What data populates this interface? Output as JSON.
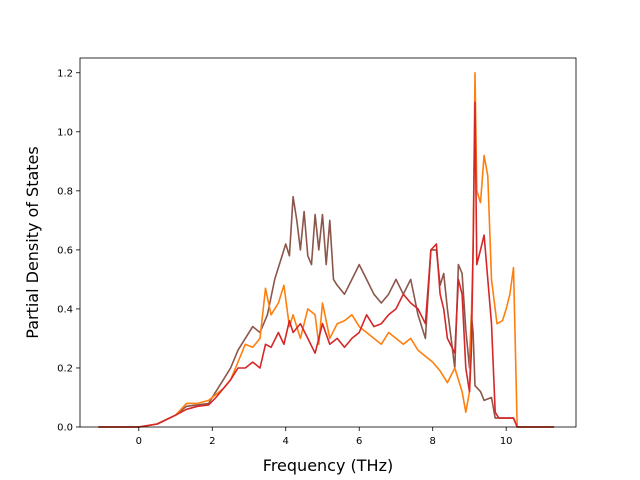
{
  "chart_data": {
    "type": "line",
    "title": "",
    "xlabel": "Frequency (THz)",
    "ylabel": "Partial Density of States",
    "xlim": [
      -1.6,
      11.9
    ],
    "ylim": [
      0.0,
      1.25
    ],
    "xticks": [
      0,
      2,
      4,
      6,
      8,
      10
    ],
    "yticks": [
      0.0,
      0.2,
      0.4,
      0.6,
      0.8,
      1.0,
      1.2
    ],
    "xtick_labels": [
      "0",
      "2",
      "4",
      "6",
      "8",
      "10"
    ],
    "ytick_labels": [
      "0.0",
      "0.2",
      "0.4",
      "0.6",
      "0.8",
      "1.0",
      "1.2"
    ],
    "grid": false,
    "legend": "none",
    "series": [
      {
        "color": "#8c564b",
        "points": [
          [
            -1.1,
            0
          ],
          [
            -0.2,
            0
          ],
          [
            0.0,
            0.0
          ],
          [
            0.5,
            0.01
          ],
          [
            1.0,
            0.04
          ],
          [
            1.3,
            0.07
          ],
          [
            1.6,
            0.075
          ],
          [
            1.9,
            0.08
          ],
          [
            2.1,
            0.12
          ],
          [
            2.3,
            0.16
          ],
          [
            2.5,
            0.2
          ],
          [
            2.7,
            0.26
          ],
          [
            2.9,
            0.3
          ],
          [
            3.1,
            0.34
          ],
          [
            3.3,
            0.32
          ],
          [
            3.5,
            0.38
          ],
          [
            3.7,
            0.5
          ],
          [
            3.9,
            0.58
          ],
          [
            4.0,
            0.62
          ],
          [
            4.1,
            0.58
          ],
          [
            4.2,
            0.78
          ],
          [
            4.3,
            0.7
          ],
          [
            4.4,
            0.6
          ],
          [
            4.5,
            0.73
          ],
          [
            4.6,
            0.58
          ],
          [
            4.7,
            0.55
          ],
          [
            4.8,
            0.72
          ],
          [
            4.9,
            0.6
          ],
          [
            5.0,
            0.72
          ],
          [
            5.1,
            0.55
          ],
          [
            5.2,
            0.7
          ],
          [
            5.3,
            0.5
          ],
          [
            5.4,
            0.48
          ],
          [
            5.6,
            0.45
          ],
          [
            5.8,
            0.5
          ],
          [
            6.0,
            0.55
          ],
          [
            6.2,
            0.5
          ],
          [
            6.4,
            0.45
          ],
          [
            6.6,
            0.42
          ],
          [
            6.8,
            0.45
          ],
          [
            7.0,
            0.5
          ],
          [
            7.2,
            0.45
          ],
          [
            7.4,
            0.5
          ],
          [
            7.6,
            0.38
          ],
          [
            7.8,
            0.3
          ],
          [
            7.95,
            0.6
          ],
          [
            8.1,
            0.6
          ],
          [
            8.2,
            0.48
          ],
          [
            8.3,
            0.52
          ],
          [
            8.4,
            0.4
          ],
          [
            8.5,
            0.3
          ],
          [
            8.6,
            0.2
          ],
          [
            8.7,
            0.55
          ],
          [
            8.8,
            0.52
          ],
          [
            8.9,
            0.33
          ],
          [
            9.0,
            0.2
          ],
          [
            9.05,
            0.38
          ],
          [
            9.1,
            0.32
          ],
          [
            9.15,
            0.14
          ],
          [
            9.3,
            0.12
          ],
          [
            9.4,
            0.09
          ],
          [
            9.6,
            0.1
          ],
          [
            9.7,
            0.03
          ],
          [
            10.2,
            0.03
          ],
          [
            10.3,
            0
          ],
          [
            11.3,
            0
          ]
        ]
      },
      {
        "color": "#ff7f0e",
        "points": [
          [
            -1.1,
            0
          ],
          [
            -0.2,
            0
          ],
          [
            0.0,
            0.0
          ],
          [
            0.5,
            0.01
          ],
          [
            1.0,
            0.04
          ],
          [
            1.3,
            0.08
          ],
          [
            1.6,
            0.08
          ],
          [
            1.9,
            0.09
          ],
          [
            2.1,
            0.11
          ],
          [
            2.3,
            0.13
          ],
          [
            2.5,
            0.16
          ],
          [
            2.7,
            0.22
          ],
          [
            2.9,
            0.28
          ],
          [
            3.1,
            0.27
          ],
          [
            3.3,
            0.3
          ],
          [
            3.45,
            0.47
          ],
          [
            3.6,
            0.38
          ],
          [
            3.8,
            0.42
          ],
          [
            3.95,
            0.48
          ],
          [
            4.1,
            0.34
          ],
          [
            4.2,
            0.38
          ],
          [
            4.4,
            0.3
          ],
          [
            4.6,
            0.4
          ],
          [
            4.8,
            0.38
          ],
          [
            4.9,
            0.28
          ],
          [
            5.0,
            0.42
          ],
          [
            5.2,
            0.3
          ],
          [
            5.4,
            0.35
          ],
          [
            5.6,
            0.36
          ],
          [
            5.8,
            0.38
          ],
          [
            6.0,
            0.34
          ],
          [
            6.2,
            0.32
          ],
          [
            6.4,
            0.3
          ],
          [
            6.6,
            0.28
          ],
          [
            6.8,
            0.32
          ],
          [
            7.0,
            0.3
          ],
          [
            7.2,
            0.28
          ],
          [
            7.4,
            0.3
          ],
          [
            7.6,
            0.26
          ],
          [
            7.8,
            0.24
          ],
          [
            8.0,
            0.22
          ],
          [
            8.2,
            0.19
          ],
          [
            8.4,
            0.15
          ],
          [
            8.6,
            0.2
          ],
          [
            8.8,
            0.12
          ],
          [
            8.9,
            0.05
          ],
          [
            9.0,
            0.12
          ],
          [
            9.1,
            0.6
          ],
          [
            9.15,
            1.2
          ],
          [
            9.2,
            0.8
          ],
          [
            9.3,
            0.76
          ],
          [
            9.4,
            0.92
          ],
          [
            9.5,
            0.85
          ],
          [
            9.6,
            0.5
          ],
          [
            9.75,
            0.35
          ],
          [
            9.9,
            0.36
          ],
          [
            10.0,
            0.4
          ],
          [
            10.1,
            0.45
          ],
          [
            10.2,
            0.54
          ],
          [
            10.3,
            0
          ],
          [
            11.3,
            0
          ]
        ]
      },
      {
        "color": "#d62728",
        "points": [
          [
            -1.1,
            0
          ],
          [
            -0.2,
            0
          ],
          [
            0.0,
            0.0
          ],
          [
            0.5,
            0.01
          ],
          [
            1.0,
            0.04
          ],
          [
            1.3,
            0.06
          ],
          [
            1.6,
            0.07
          ],
          [
            1.9,
            0.075
          ],
          [
            2.1,
            0.1
          ],
          [
            2.3,
            0.13
          ],
          [
            2.5,
            0.16
          ],
          [
            2.7,
            0.2
          ],
          [
            2.9,
            0.2
          ],
          [
            3.1,
            0.22
          ],
          [
            3.3,
            0.2
          ],
          [
            3.45,
            0.28
          ],
          [
            3.6,
            0.27
          ],
          [
            3.8,
            0.32
          ],
          [
            3.95,
            0.28
          ],
          [
            4.1,
            0.36
          ],
          [
            4.2,
            0.32
          ],
          [
            4.4,
            0.35
          ],
          [
            4.6,
            0.3
          ],
          [
            4.8,
            0.25
          ],
          [
            5.0,
            0.35
          ],
          [
            5.2,
            0.28
          ],
          [
            5.4,
            0.3
          ],
          [
            5.6,
            0.27
          ],
          [
            5.8,
            0.3
          ],
          [
            6.0,
            0.32
          ],
          [
            6.2,
            0.38
          ],
          [
            6.4,
            0.34
          ],
          [
            6.6,
            0.35
          ],
          [
            6.8,
            0.38
          ],
          [
            7.0,
            0.4
          ],
          [
            7.2,
            0.45
          ],
          [
            7.4,
            0.42
          ],
          [
            7.6,
            0.4
          ],
          [
            7.8,
            0.35
          ],
          [
            7.95,
            0.6
          ],
          [
            8.1,
            0.62
          ],
          [
            8.2,
            0.45
          ],
          [
            8.3,
            0.4
          ],
          [
            8.4,
            0.3
          ],
          [
            8.6,
            0.25
          ],
          [
            8.7,
            0.5
          ],
          [
            8.8,
            0.45
          ],
          [
            8.9,
            0.2
          ],
          [
            9.0,
            0.12
          ],
          [
            9.05,
            0.25
          ],
          [
            9.1,
            0.6
          ],
          [
            9.15,
            1.1
          ],
          [
            9.2,
            0.55
          ],
          [
            9.3,
            0.6
          ],
          [
            9.4,
            0.65
          ],
          [
            9.5,
            0.5
          ],
          [
            9.6,
            0.35
          ],
          [
            9.7,
            0.05
          ],
          [
            9.8,
            0.03
          ],
          [
            10.2,
            0.03
          ],
          [
            10.3,
            0
          ],
          [
            11.3,
            0
          ]
        ]
      }
    ]
  }
}
